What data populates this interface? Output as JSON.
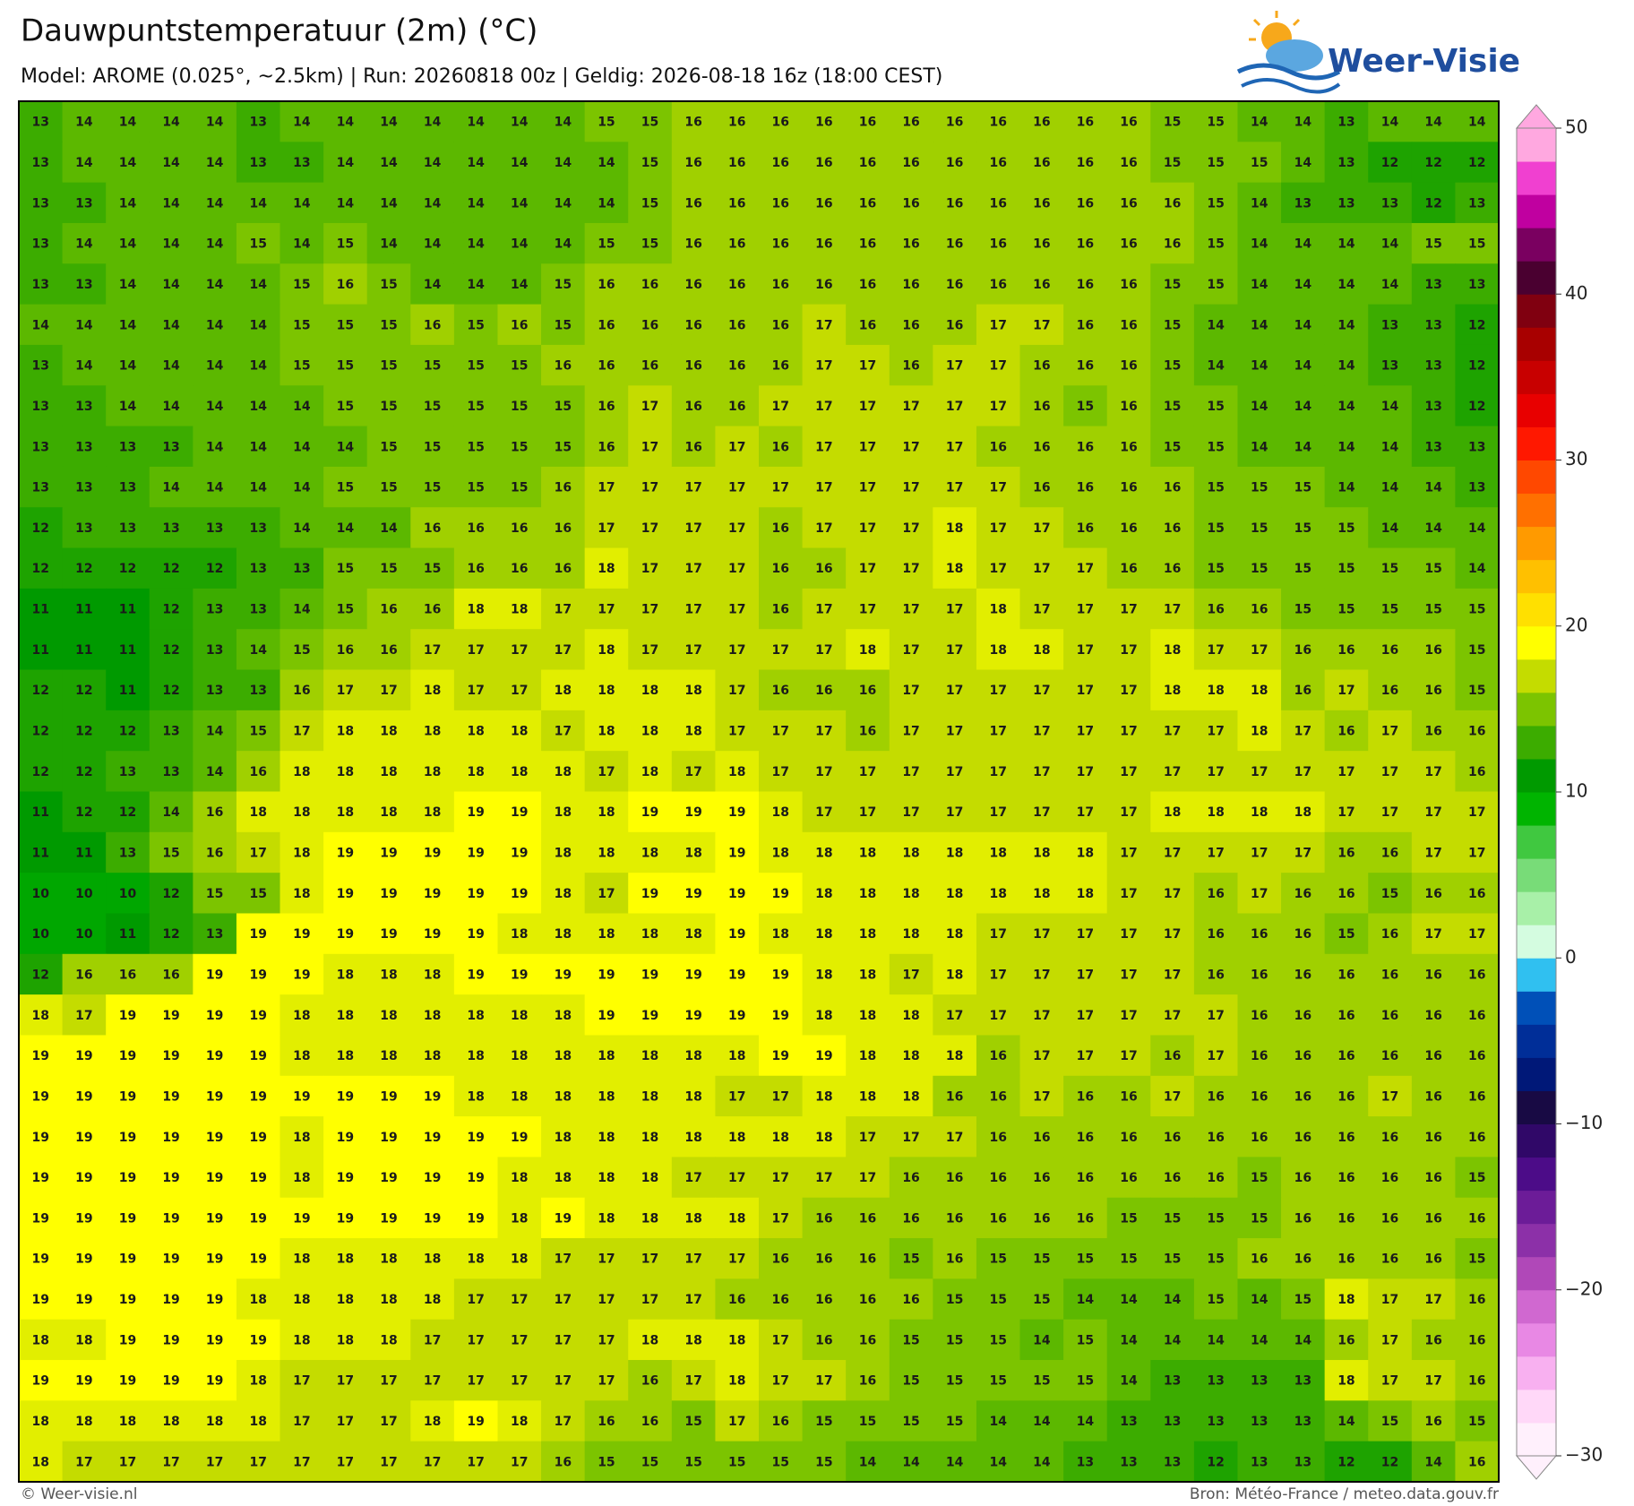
{
  "header": {
    "title": "Dauwpuntstemperatuur (2m) (°C)",
    "subtitle": "Model: AROME (0.025°, ~2.5km)  |  Run: 20260818 00z  |  Geldig: 2026-08-18 16z (18:00 CEST)",
    "logo": "Weer-Visie"
  },
  "map": {
    "rows": [
      [
        13,
        14,
        14,
        14,
        14,
        13,
        14,
        14,
        14,
        14,
        14,
        14,
        14,
        15,
        15,
        16,
        16,
        16,
        16,
        16,
        16,
        16,
        16,
        16,
        16,
        16,
        15,
        15,
        14,
        14,
        13,
        14,
        14,
        14
      ],
      [
        13,
        14,
        14,
        14,
        14,
        13,
        13,
        14,
        14,
        14,
        14,
        14,
        14,
        14,
        15,
        16,
        16,
        16,
        16,
        16,
        16,
        16,
        16,
        16,
        16,
        16,
        15,
        15,
        15,
        14,
        13,
        12,
        12,
        12
      ],
      [
        13,
        13,
        14,
        14,
        14,
        14,
        14,
        14,
        14,
        14,
        14,
        14,
        14,
        14,
        15,
        16,
        16,
        16,
        16,
        16,
        16,
        16,
        16,
        16,
        16,
        16,
        16,
        15,
        14,
        13,
        13,
        13,
        12,
        13
      ],
      [
        13,
        14,
        14,
        14,
        14,
        15,
        14,
        15,
        14,
        14,
        14,
        14,
        14,
        15,
        15,
        16,
        16,
        16,
        16,
        16,
        16,
        16,
        16,
        16,
        16,
        16,
        16,
        15,
        14,
        14,
        14,
        14,
        15,
        15
      ],
      [
        13,
        13,
        14,
        14,
        14,
        14,
        15,
        16,
        15,
        14,
        14,
        14,
        15,
        16,
        16,
        16,
        16,
        16,
        16,
        16,
        16,
        16,
        16,
        16,
        16,
        16,
        15,
        15,
        14,
        14,
        14,
        14,
        13,
        13
      ],
      [
        14,
        14,
        14,
        14,
        14,
        14,
        15,
        15,
        15,
        16,
        15,
        16,
        15,
        16,
        16,
        16,
        16,
        16,
        17,
        16,
        16,
        16,
        17,
        17,
        16,
        16,
        15,
        14,
        14,
        14,
        14,
        13,
        13,
        12
      ],
      [
        13,
        14,
        14,
        14,
        14,
        14,
        15,
        15,
        15,
        15,
        15,
        15,
        16,
        16,
        16,
        16,
        16,
        16,
        17,
        17,
        16,
        17,
        17,
        16,
        16,
        16,
        15,
        14,
        14,
        14,
        14,
        13,
        13,
        12
      ],
      [
        13,
        13,
        14,
        14,
        14,
        14,
        14,
        15,
        15,
        15,
        15,
        15,
        15,
        16,
        17,
        16,
        16,
        17,
        17,
        17,
        17,
        17,
        17,
        16,
        15,
        16,
        15,
        15,
        14,
        14,
        14,
        14,
        13,
        12
      ],
      [
        13,
        13,
        13,
        13,
        14,
        14,
        14,
        14,
        15,
        15,
        15,
        15,
        15,
        16,
        17,
        16,
        17,
        16,
        17,
        17,
        17,
        17,
        16,
        16,
        16,
        16,
        15,
        15,
        14,
        14,
        14,
        14,
        13,
        13
      ],
      [
        13,
        13,
        13,
        14,
        14,
        14,
        14,
        15,
        15,
        15,
        15,
        15,
        16,
        17,
        17,
        17,
        17,
        17,
        17,
        17,
        17,
        17,
        17,
        16,
        16,
        16,
        16,
        15,
        15,
        15,
        14,
        14,
        14,
        13
      ],
      [
        12,
        13,
        13,
        13,
        13,
        13,
        14,
        14,
        14,
        16,
        16,
        16,
        16,
        17,
        17,
        17,
        17,
        16,
        17,
        17,
        17,
        18,
        17,
        17,
        16,
        16,
        16,
        15,
        15,
        15,
        15,
        14,
        14,
        14
      ],
      [
        12,
        12,
        12,
        12,
        12,
        13,
        13,
        15,
        15,
        15,
        16,
        16,
        16,
        18,
        17,
        17,
        17,
        16,
        16,
        17,
        17,
        18,
        17,
        17,
        17,
        16,
        16,
        15,
        15,
        15,
        15,
        15,
        15,
        14
      ],
      [
        11,
        11,
        11,
        12,
        13,
        13,
        14,
        15,
        16,
        16,
        18,
        18,
        17,
        17,
        17,
        17,
        17,
        16,
        17,
        17,
        17,
        17,
        18,
        17,
        17,
        17,
        17,
        16,
        16,
        15,
        15,
        15,
        15,
        15
      ],
      [
        11,
        11,
        11,
        12,
        13,
        14,
        15,
        16,
        16,
        17,
        17,
        17,
        17,
        18,
        17,
        17,
        17,
        17,
        17,
        18,
        17,
        17,
        18,
        18,
        17,
        17,
        18,
        17,
        17,
        16,
        16,
        16,
        16,
        15
      ],
      [
        12,
        12,
        11,
        12,
        13,
        13,
        16,
        17,
        17,
        18,
        17,
        17,
        18,
        18,
        18,
        18,
        17,
        16,
        16,
        16,
        17,
        17,
        17,
        17,
        17,
        17,
        18,
        18,
        18,
        16,
        17,
        16,
        16,
        15
      ],
      [
        12,
        12,
        12,
        13,
        14,
        15,
        17,
        18,
        18,
        18,
        18,
        18,
        17,
        18,
        18,
        18,
        17,
        17,
        17,
        16,
        17,
        17,
        17,
        17,
        17,
        17,
        17,
        17,
        18,
        17,
        16,
        17,
        16,
        16
      ],
      [
        12,
        12,
        13,
        13,
        14,
        16,
        18,
        18,
        18,
        18,
        18,
        18,
        18,
        17,
        18,
        17,
        18,
        17,
        17,
        17,
        17,
        17,
        17,
        17,
        17,
        17,
        17,
        17,
        17,
        17,
        17,
        17,
        17,
        16
      ],
      [
        11,
        12,
        12,
        14,
        16,
        18,
        18,
        18,
        18,
        18,
        19,
        19,
        18,
        18,
        19,
        19,
        19,
        18,
        17,
        17,
        17,
        17,
        17,
        17,
        17,
        17,
        18,
        18,
        18,
        18,
        17,
        17,
        17,
        17
      ],
      [
        11,
        11,
        13,
        15,
        16,
        17,
        18,
        19,
        19,
        19,
        19,
        19,
        18,
        18,
        18,
        18,
        19,
        18,
        18,
        18,
        18,
        18,
        18,
        18,
        18,
        17,
        17,
        17,
        17,
        17,
        16,
        16,
        17,
        17
      ],
      [
        10,
        10,
        10,
        12,
        15,
        15,
        18,
        19,
        19,
        19,
        19,
        19,
        18,
        17,
        19,
        19,
        19,
        19,
        18,
        18,
        18,
        18,
        18,
        18,
        18,
        17,
        17,
        16,
        17,
        16,
        16,
        15,
        16,
        16
      ],
      [
        10,
        10,
        11,
        12,
        13,
        19,
        19,
        19,
        19,
        19,
        19,
        18,
        18,
        18,
        18,
        18,
        19,
        18,
        18,
        18,
        18,
        18,
        17,
        17,
        17,
        17,
        17,
        16,
        16,
        16,
        15,
        16,
        17,
        17
      ],
      [
        12,
        16,
        16,
        16,
        19,
        19,
        19,
        18,
        18,
        18,
        19,
        19,
        19,
        19,
        19,
        19,
        19,
        19,
        18,
        18,
        17,
        18,
        17,
        17,
        17,
        17,
        17,
        16,
        16,
        16,
        16,
        16,
        16,
        16
      ],
      [
        18,
        17,
        19,
        19,
        19,
        19,
        18,
        18,
        18,
        18,
        18,
        18,
        18,
        19,
        19,
        19,
        19,
        19,
        18,
        18,
        18,
        17,
        17,
        17,
        17,
        17,
        17,
        17,
        16,
        16,
        16,
        16,
        16,
        16
      ],
      [
        19,
        19,
        19,
        19,
        19,
        19,
        18,
        18,
        18,
        18,
        18,
        18,
        18,
        18,
        18,
        18,
        18,
        19,
        19,
        18,
        18,
        18,
        16,
        17,
        17,
        17,
        16,
        17,
        16,
        16,
        16,
        16,
        16,
        16
      ],
      [
        19,
        19,
        19,
        19,
        19,
        19,
        19,
        19,
        19,
        19,
        18,
        18,
        18,
        18,
        18,
        18,
        17,
        17,
        18,
        18,
        18,
        16,
        16,
        17,
        16,
        16,
        17,
        16,
        16,
        16,
        16,
        17,
        16,
        16
      ],
      [
        19,
        19,
        19,
        19,
        19,
        19,
        18,
        19,
        19,
        19,
        19,
        19,
        18,
        18,
        18,
        18,
        18,
        18,
        18,
        17,
        17,
        17,
        16,
        16,
        16,
        16,
        16,
        16,
        16,
        16,
        16,
        16,
        16,
        16
      ],
      [
        19,
        19,
        19,
        19,
        19,
        19,
        18,
        19,
        19,
        19,
        19,
        18,
        18,
        18,
        18,
        17,
        17,
        17,
        17,
        17,
        16,
        16,
        16,
        16,
        16,
        16,
        16,
        16,
        15,
        16,
        16,
        16,
        16,
        15
      ],
      [
        19,
        19,
        19,
        19,
        19,
        19,
        19,
        19,
        19,
        19,
        19,
        18,
        19,
        18,
        18,
        18,
        18,
        17,
        16,
        16,
        16,
        16,
        16,
        16,
        16,
        15,
        15,
        15,
        15,
        16,
        16,
        16,
        16,
        16
      ],
      [
        19,
        19,
        19,
        19,
        19,
        19,
        18,
        18,
        18,
        18,
        18,
        18,
        17,
        17,
        17,
        17,
        17,
        16,
        16,
        16,
        15,
        16,
        15,
        15,
        15,
        15,
        15,
        15,
        16,
        16,
        16,
        16,
        16,
        15
      ],
      [
        19,
        19,
        19,
        19,
        19,
        18,
        18,
        18,
        18,
        18,
        17,
        17,
        17,
        17,
        17,
        17,
        16,
        16,
        16,
        16,
        16,
        15,
        15,
        15,
        14,
        14,
        14,
        15,
        14,
        15,
        18,
        17,
        17,
        16
      ],
      [
        18,
        18,
        19,
        19,
        19,
        19,
        18,
        18,
        18,
        17,
        17,
        17,
        17,
        17,
        18,
        18,
        18,
        17,
        16,
        16,
        15,
        15,
        15,
        14,
        15,
        14,
        14,
        14,
        14,
        14,
        16,
        17,
        16,
        16
      ],
      [
        19,
        19,
        19,
        19,
        19,
        18,
        17,
        17,
        17,
        17,
        17,
        17,
        17,
        17,
        16,
        17,
        18,
        17,
        17,
        16,
        15,
        15,
        15,
        15,
        15,
        14,
        13,
        13,
        13,
        13,
        18,
        17,
        17,
        16
      ],
      [
        18,
        18,
        18,
        18,
        18,
        18,
        17,
        17,
        17,
        18,
        19,
        18,
        17,
        16,
        16,
        15,
        17,
        16,
        15,
        15,
        15,
        15,
        14,
        14,
        14,
        13,
        13,
        13,
        13,
        13,
        14,
        15,
        16,
        15
      ],
      [
        18,
        17,
        17,
        17,
        17,
        17,
        17,
        17,
        17,
        17,
        17,
        17,
        16,
        15,
        15,
        15,
        15,
        15,
        15,
        14,
        14,
        14,
        14,
        14,
        13,
        13,
        13,
        12,
        13,
        13,
        12,
        12,
        14,
        16
      ]
    ]
  },
  "colorbar": {
    "lim": [
      -30,
      50
    ],
    "ticks": [
      {
        "value": -30,
        "label": "−30"
      },
      {
        "value": -20,
        "label": "−20"
      },
      {
        "value": -10,
        "label": "−10"
      },
      0,
      10,
      20,
      30,
      40,
      50
    ],
    "colors": [
      "#fff0fc",
      "#ffd8f8",
      "#f8b0f0",
      "#e888e4",
      "#d068d0",
      "#b048b8",
      "#8c30a8",
      "#6c1c98",
      "#4c0c88",
      "#300868",
      "#180a44",
      "#001878",
      "#002e98",
      "#0050b8",
      "#30c0f0",
      "#d4fce0",
      "#a8f0a8",
      "#78dc78",
      "#40c840",
      "#00b400",
      "#009a00",
      "#3cac00",
      "#7cc400",
      "#c4dc00",
      "#ffff00",
      "#ffe000",
      "#ffc000",
      "#ff9a00",
      "#ff7000",
      "#ff4800",
      "#ff1800",
      "#e80000",
      "#c80000",
      "#a80000",
      "#800010",
      "#4a0030",
      "#7a0060",
      "#c000a0",
      "#f040d0",
      "#ffa8e0"
    ]
  },
  "footer": {
    "left": "© Weer-visie.nl",
    "right": "Bron: Météo-France / meteo.data.gouv.fr"
  }
}
